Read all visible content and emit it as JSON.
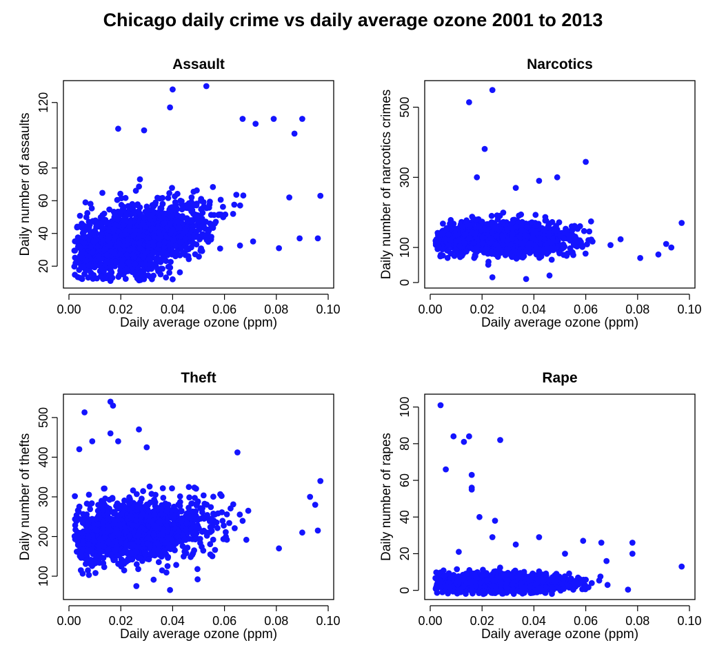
{
  "title": "Chicago daily crime vs daily average ozone 2001 to 2013",
  "colors": {
    "points": "#1414ff",
    "axes": "#000000"
  },
  "chart_data": [
    {
      "type": "scatter",
      "title": "Assault",
      "xlabel": "Daily average ozone (ppm)",
      "ylabel": "Daily number of assaults",
      "xlim": [
        0.0,
        0.1
      ],
      "ylim": [
        10,
        130
      ],
      "xticks": [
        "0.00",
        "0.02",
        "0.04",
        "0.06",
        "0.08",
        "0.10"
      ],
      "yticks": [
        "20",
        "40",
        "60",
        "80",
        "120"
      ],
      "cloud": {
        "x_center": 0.027,
        "x_spread": 0.013,
        "y_base": 38,
        "y_slope": 350,
        "y_spread": 10
      },
      "outliers": [
        [
          0.04,
          128
        ],
        [
          0.053,
          130
        ],
        [
          0.039,
          117
        ],
        [
          0.067,
          110
        ],
        [
          0.079,
          110
        ],
        [
          0.09,
          110
        ],
        [
          0.087,
          101
        ],
        [
          0.085,
          62
        ],
        [
          0.097,
          63
        ],
        [
          0.096,
          37
        ],
        [
          0.089,
          37
        ],
        [
          0.081,
          31
        ],
        [
          0.04,
          12
        ],
        [
          0.016,
          11
        ],
        [
          0.019,
          104
        ],
        [
          0.029,
          103
        ],
        [
          0.072,
          107
        ]
      ]
    },
    {
      "type": "scatter",
      "title": "Narcotics",
      "xlabel": "Daily average ozone (ppm)",
      "ylabel": "Daily number of narcotics crimes",
      "xlim": [
        0.0,
        0.1
      ],
      "ylim": [
        0,
        560
      ],
      "xticks": [
        "0.00",
        "0.02",
        "0.04",
        "0.06",
        "0.08",
        "0.10"
      ],
      "yticks": [
        "0",
        "100",
        "300",
        "500"
      ],
      "cloud": {
        "x_center": 0.027,
        "x_spread": 0.013,
        "y_base": 125,
        "y_slope": -80,
        "y_spread": 22
      },
      "outliers": [
        [
          0.024,
          549
        ],
        [
          0.015,
          514
        ],
        [
          0.021,
          381
        ],
        [
          0.06,
          344
        ],
        [
          0.049,
          300
        ],
        [
          0.018,
          300
        ],
        [
          0.033,
          270
        ],
        [
          0.042,
          290
        ],
        [
          0.097,
          170
        ],
        [
          0.093,
          100
        ],
        [
          0.091,
          110
        ],
        [
          0.088,
          80
        ],
        [
          0.081,
          70
        ],
        [
          0.037,
          10
        ],
        [
          0.046,
          20
        ],
        [
          0.024,
          15
        ]
      ]
    },
    {
      "type": "scatter",
      "title": "Theft",
      "xlabel": "Daily average ozone (ppm)",
      "ylabel": "Daily number of thefts",
      "xlim": [
        0.0,
        0.1
      ],
      "ylim": [
        55,
        545
      ],
      "xticks": [
        "0.00",
        "0.02",
        "0.04",
        "0.06",
        "0.08",
        "0.10"
      ],
      "yticks": [
        "100",
        "200",
        "300",
        "400",
        "500"
      ],
      "cloud": {
        "x_center": 0.027,
        "x_spread": 0.013,
        "y_base": 215,
        "y_slope": 500,
        "y_spread": 38
      },
      "outliers": [
        [
          0.016,
          540
        ],
        [
          0.017,
          530
        ],
        [
          0.006,
          513
        ],
        [
          0.027,
          470
        ],
        [
          0.016,
          460
        ],
        [
          0.004,
          420
        ],
        [
          0.009,
          440
        ],
        [
          0.019,
          440
        ],
        [
          0.03,
          425
        ],
        [
          0.065,
          412
        ],
        [
          0.097,
          340
        ],
        [
          0.095,
          280
        ],
        [
          0.093,
          300
        ],
        [
          0.096,
          215
        ],
        [
          0.09,
          210
        ],
        [
          0.081,
          170
        ],
        [
          0.039,
          65
        ],
        [
          0.026,
          75
        ]
      ]
    },
    {
      "type": "scatter",
      "title": "Rape",
      "xlabel": "Daily average ozone (ppm)",
      "ylabel": "Daily number of rapes",
      "xlim": [
        0.0,
        0.1
      ],
      "ylim": [
        -2,
        104
      ],
      "xticks": [
        "0.00",
        "0.02",
        "0.04",
        "0.06",
        "0.08",
        "0.10"
      ],
      "yticks": [
        "0",
        "20",
        "40",
        "60",
        "80",
        "100"
      ],
      "cloud": {
        "x_center": 0.027,
        "x_spread": 0.013,
        "y_base": 4,
        "y_slope": 0,
        "y_spread": 2.5
      },
      "outliers": [
        [
          0.004,
          101
        ],
        [
          0.009,
          84
        ],
        [
          0.015,
          84
        ],
        [
          0.013,
          81
        ],
        [
          0.027,
          82
        ],
        [
          0.006,
          66
        ],
        [
          0.016,
          63
        ],
        [
          0.016,
          56
        ],
        [
          0.016,
          55
        ],
        [
          0.019,
          40
        ],
        [
          0.025,
          38
        ],
        [
          0.042,
          29
        ],
        [
          0.024,
          29
        ],
        [
          0.059,
          27
        ],
        [
          0.033,
          25
        ],
        [
          0.066,
          26
        ],
        [
          0.078,
          26
        ],
        [
          0.011,
          21
        ],
        [
          0.097,
          13
        ],
        [
          0.068,
          16
        ],
        [
          0.078,
          20
        ],
        [
          0.052,
          20
        ]
      ]
    }
  ]
}
